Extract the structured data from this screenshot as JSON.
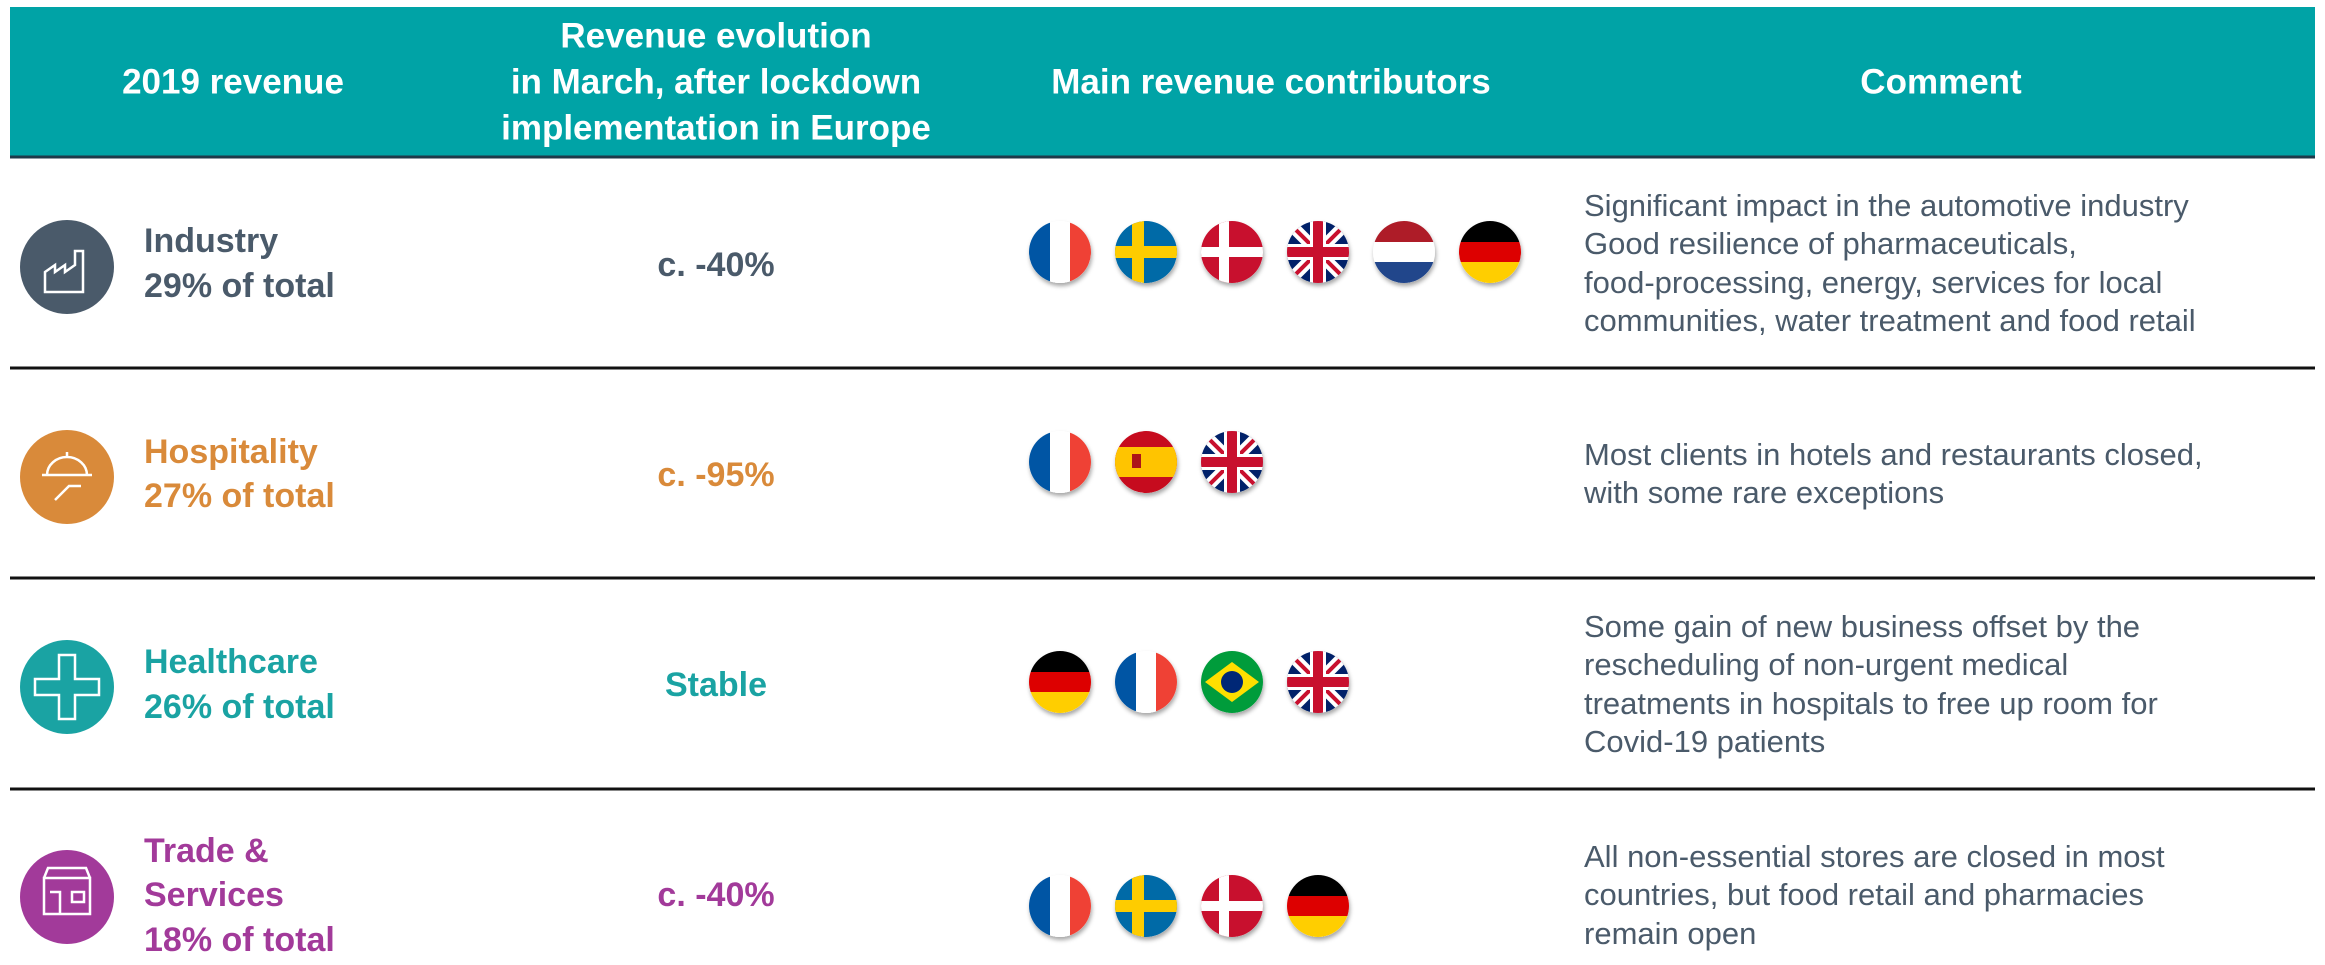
{
  "header": {
    "columns": [
      [
        "2019 revenue"
      ],
      [
        "Revenue evolution",
        "in March, after lockdown",
        "implementation in Europe"
      ],
      [
        "Main revenue contributors"
      ],
      [
        "Comment"
      ]
    ]
  },
  "rows": [
    {
      "name": [
        "Industry"
      ],
      "share": "29% of total",
      "evolution": "c. -40%",
      "comment": [
        "Significant impact in the automotive industry",
        "Good resilience of pharmaceuticals,",
        "food-processing, energy, services for local",
        "communities, water treatment and food retail"
      ]
    },
    {
      "name": [
        "Hospitality"
      ],
      "share": "27% of total",
      "evolution": "c. -95%",
      "comment": [
        "Most clients in hotels and restaurants closed,",
        "with some rare exceptions"
      ]
    },
    {
      "name": [
        "Healthcare"
      ],
      "share": "26% of total",
      "evolution": "Stable",
      "comment": [
        "Some gain of new business offset by the",
        "rescheduling of non-urgent medical",
        "treatments in hospitals to free up room for",
        "Covid-19 patients"
      ]
    },
    {
      "name": [
        "Trade &",
        "Services"
      ],
      "share": "18% of total",
      "evolution": "c. -40%",
      "comment": [
        "All non-essential stores are closed in most",
        "countries, but food retail and pharmacies",
        "remain open"
      ]
    }
  ]
}
